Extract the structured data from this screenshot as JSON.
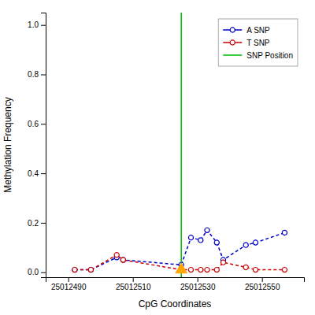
{
  "chart_data": {
    "type": "line",
    "xlabel": "CpG Coordinates",
    "ylabel": "Methylation Frequency",
    "xlim": [
      25012483,
      25012563
    ],
    "ylim": [
      -0.02,
      1.05
    ],
    "xticks": [
      25012490,
      25012510,
      25012530,
      25012550
    ],
    "yticks": [
      {
        "value": 0.0,
        "label": "0.0"
      },
      0.2,
      0.4,
      0.6,
      0.8,
      {
        "value": 1.0,
        "label": "1.0"
      }
    ],
    "grid": false,
    "legend": "upper right",
    "series": [
      {
        "name": "A SNP",
        "type": "line",
        "color": "#0000cc",
        "marker": "circle",
        "line_style": "dashed",
        "x": [
          25012492,
          25012497,
          25012505,
          25012507,
          25012525,
          25012528,
          25012531,
          25012533,
          25012536,
          25012538,
          25012545,
          25012548,
          25012557
        ],
        "values": [
          0.01,
          0.01,
          0.06,
          0.05,
          0.03,
          0.14,
          0.13,
          0.17,
          0.12,
          0.05,
          0.11,
          0.12,
          0.16
        ]
      },
      {
        "name": "T SNP",
        "type": "line",
        "color": "#cc0000",
        "marker": "circle",
        "line_style": "dashed",
        "x": [
          25012492,
          25012497,
          25012505,
          25012507,
          25012525,
          25012528,
          25012531,
          25012533,
          25012536,
          25012538,
          25012545,
          25012548,
          25012557
        ],
        "values": [
          0.01,
          0.01,
          0.07,
          0.05,
          0.01,
          0.01,
          0.01,
          0.01,
          0.01,
          0.04,
          0.02,
          0.01,
          0.01
        ]
      },
      {
        "name": "SNP Position",
        "type": "vline",
        "color": "#00bb00",
        "line_style": "solid",
        "x": [
          25012525
        ]
      },
      {
        "type": "scatter",
        "color": "#FFA500",
        "marker": "triangle",
        "x": [
          25012525
        ],
        "values": [
          0.01
        ]
      }
    ]
  }
}
